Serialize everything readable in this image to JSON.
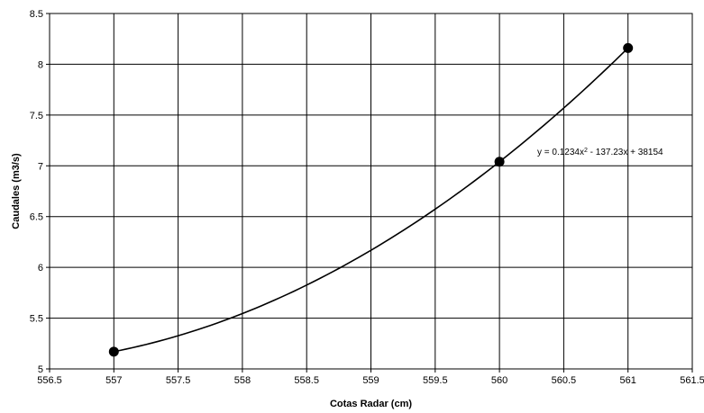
{
  "chart_data": {
    "type": "scatter",
    "title": "",
    "xlabel": "Cotas Radar (cm)",
    "ylabel": "Caudales (m3/s)",
    "xlim": [
      556.5,
      561.5
    ],
    "ylim": [
      5,
      8.5
    ],
    "x_ticks": [
      "556.5",
      "557",
      "557.5",
      "558",
      "558.5",
      "559",
      "559.5",
      "560",
      "560.5",
      "561",
      "561.5"
    ],
    "y_ticks": [
      "5",
      "5.5",
      "6",
      "6.5",
      "7",
      "7.5",
      "8",
      "8.5"
    ],
    "grid": true,
    "legend": "none",
    "series": [
      {
        "x": [
          557,
          560,
          561
        ],
        "y": [
          5.17,
          7.04,
          8.16
        ],
        "marker": "circle",
        "color": "#000000"
      }
    ],
    "trendline": {
      "type": "polynomial-2",
      "coefficients": {
        "a": 0.1234,
        "b": -137.23,
        "c": 38154
      },
      "label_main": "y = 0.1234x",
      "label_sup": "2",
      "label_tail": " - 137.23x + 38154",
      "color": "#000000"
    }
  }
}
